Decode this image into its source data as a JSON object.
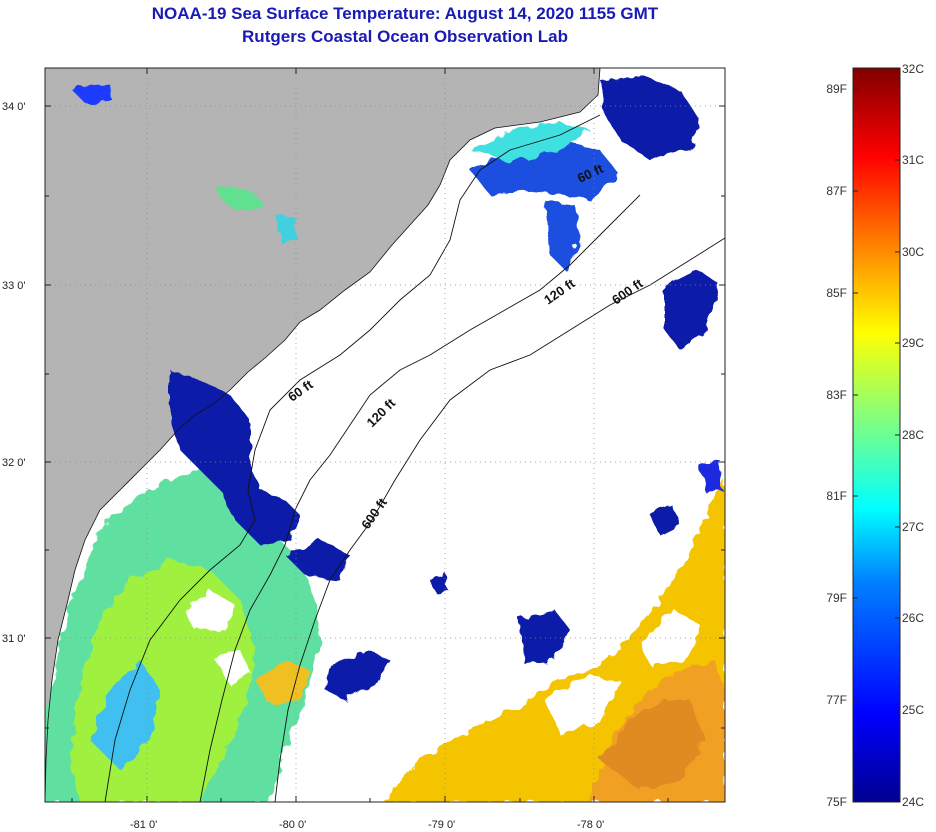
{
  "title": "NOAA-19 Sea Surface Temperature:  August 14, 2020 1155 GMT",
  "subtitle": "Rutgers Coastal Ocean Observation Lab",
  "lat_ticks": [
    "34 0'",
    "33 0'",
    "32 0'",
    "31 0'"
  ],
  "lon_ticks": [
    "-81 0'",
    "-80 0'",
    "-79 0'",
    "-78 0'"
  ],
  "contours": [
    "60 ft",
    "120 ft",
    "600 ft",
    "60 ft",
    "120 ft",
    "600 ft"
  ],
  "colorbar": {
    "fahrenheit": [
      "89F",
      "87F",
      "85F",
      "83F",
      "81F",
      "79F",
      "77F",
      "75F"
    ],
    "celsius": [
      "32C",
      "31C",
      "30C",
      "29C",
      "28C",
      "27C",
      "26C",
      "25C",
      "24C"
    ]
  },
  "colors": {
    "land": "#b4b4b4",
    "cloud": "#ffffff",
    "title": "#1a1ab4"
  }
}
